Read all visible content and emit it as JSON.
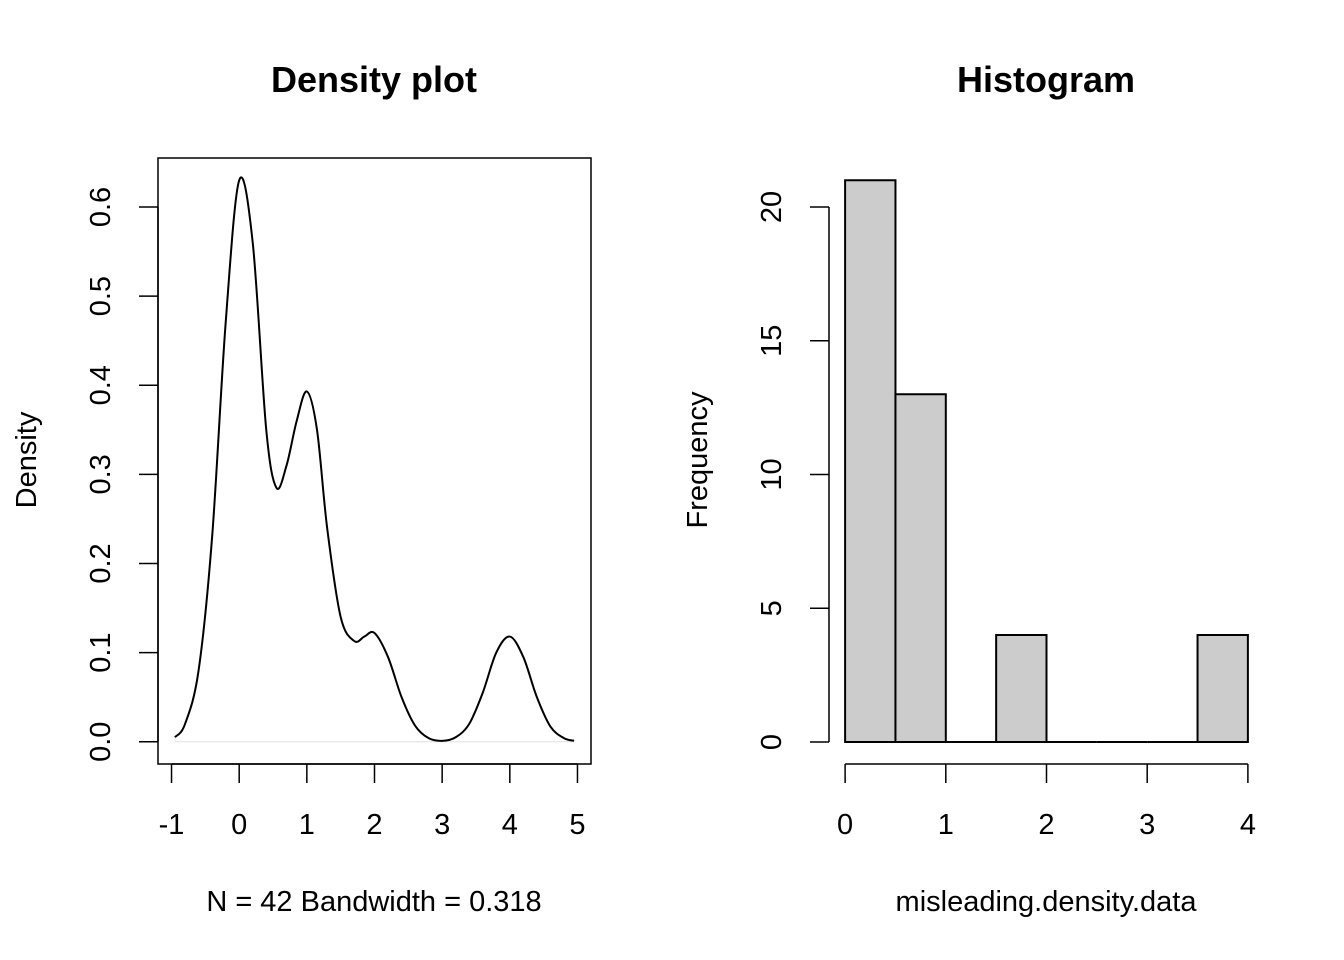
{
  "chart_data": [
    {
      "type": "line",
      "title": "Density plot",
      "xlabel": "N = 42   Bandwidth = 0.318",
      "ylabel": "Density",
      "xlim": [
        -1.2,
        5.2
      ],
      "ylim": [
        -0.025,
        0.655
      ],
      "x_ticks": [
        -1,
        0,
        1,
        2,
        3,
        4,
        5
      ],
      "x_tick_labels": [
        "-1",
        "0",
        "1",
        "2",
        "3",
        "4",
        "5"
      ],
      "y_ticks": [
        0.0,
        0.1,
        0.2,
        0.3,
        0.4,
        0.5,
        0.6
      ],
      "y_tick_labels": [
        "0.0",
        "0.1",
        "0.2",
        "0.3",
        "0.4",
        "0.5",
        "0.6"
      ],
      "grid": false,
      "box": true,
      "baseline": 0,
      "series": [
        {
          "x": [
            -0.95,
            -0.8,
            -0.6,
            -0.4,
            -0.2,
            0.0,
            0.2,
            0.4,
            0.55,
            0.7,
            0.85,
            1.0,
            1.15,
            1.3,
            1.5,
            1.7,
            1.85,
            2.0,
            2.2,
            2.4,
            2.6,
            2.8,
            3.0,
            3.2,
            3.4,
            3.6,
            3.8,
            4.0,
            4.2,
            4.4,
            4.6,
            4.8,
            4.95
          ],
          "y": [
            0.005,
            0.02,
            0.08,
            0.23,
            0.47,
            0.63,
            0.56,
            0.35,
            0.285,
            0.31,
            0.36,
            0.393,
            0.35,
            0.24,
            0.14,
            0.113,
            0.118,
            0.122,
            0.095,
            0.05,
            0.018,
            0.004,
            0.001,
            0.005,
            0.02,
            0.055,
            0.1,
            0.118,
            0.095,
            0.05,
            0.017,
            0.004,
            0.001
          ]
        }
      ]
    },
    {
      "type": "bar",
      "title": "Histogram",
      "xlabel": "misleading.density.data",
      "ylabel": "Frequency",
      "bins": [
        {
          "x0": 0.0,
          "x1": 0.5,
          "count": 21
        },
        {
          "x0": 0.5,
          "x1": 1.0,
          "count": 13
        },
        {
          "x0": 1.0,
          "x1": 1.5,
          "count": 0
        },
        {
          "x0": 1.5,
          "x1": 2.0,
          "count": 4
        },
        {
          "x0": 2.0,
          "x1": 2.5,
          "count": 0
        },
        {
          "x0": 2.5,
          "x1": 3.0,
          "count": 0
        },
        {
          "x0": 3.0,
          "x1": 3.5,
          "count": 0
        },
        {
          "x0": 3.5,
          "x1": 4.0,
          "count": 4
        }
      ],
      "xlim": [
        -0.16,
        4.16
      ],
      "ylim": [
        0,
        21.8
      ],
      "x_ticks": [
        0,
        1,
        2,
        3,
        4
      ],
      "x_tick_labels": [
        "0",
        "1",
        "2",
        "3",
        "4"
      ],
      "y_ticks": [
        0,
        5,
        10,
        15,
        20
      ],
      "y_tick_labels": [
        "0",
        "5",
        "10",
        "15",
        "20"
      ],
      "bar_color": "#cccccc",
      "grid": false
    }
  ]
}
